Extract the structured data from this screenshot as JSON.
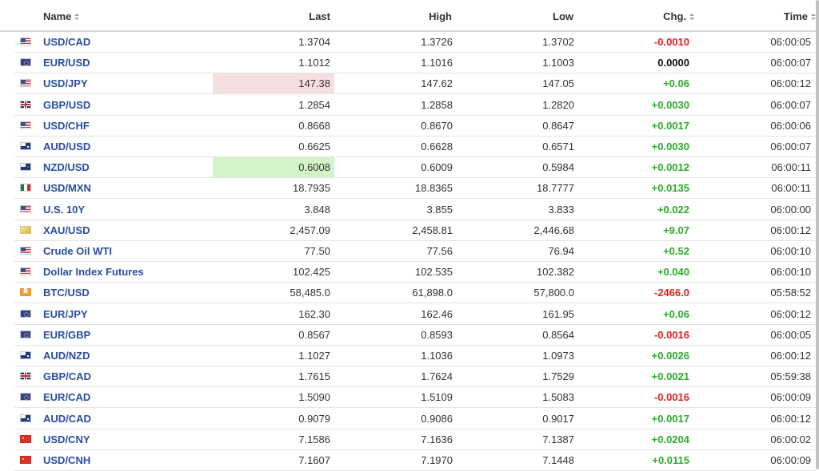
{
  "table": {
    "headers": {
      "name": "Name",
      "last": "Last",
      "high": "High",
      "low": "Low",
      "chg": "Chg.",
      "time": "Time"
    },
    "rows": [
      {
        "flag": "us-flag-icon",
        "name": "USD/CAD",
        "last": "1.3704",
        "high": "1.3726",
        "low": "1.3702",
        "chg": "-0.0010",
        "dir": "neg",
        "time": "06:00:05"
      },
      {
        "flag": "eu-flag-icon",
        "name": "EUR/USD",
        "last": "1.1012",
        "high": "1.1016",
        "low": "1.1003",
        "chg": "0.0000",
        "dir": "zero",
        "time": "06:00:07"
      },
      {
        "flag": "us-flag-icon",
        "name": "USD/JPY",
        "last": "147.38",
        "high": "147.62",
        "low": "147.05",
        "chg": "+0.06",
        "dir": "pos",
        "time": "06:00:12",
        "highlight": "down"
      },
      {
        "flag": "gb-flag-icon",
        "name": "GBP/USD",
        "last": "1.2854",
        "high": "1.2858",
        "low": "1.2820",
        "chg": "+0.0030",
        "dir": "pos",
        "time": "06:00:07"
      },
      {
        "flag": "us-flag-icon",
        "name": "USD/CHF",
        "last": "0.8668",
        "high": "0.8670",
        "low": "0.8647",
        "chg": "+0.0017",
        "dir": "pos",
        "time": "06:00:06"
      },
      {
        "flag": "au-flag-icon",
        "name": "AUD/USD",
        "last": "0.6625",
        "high": "0.6628",
        "low": "0.6571",
        "chg": "+0.0030",
        "dir": "pos",
        "time": "06:00:07"
      },
      {
        "flag": "nz-flag-icon",
        "name": "NZD/USD",
        "last": "0.6008",
        "high": "0.6009",
        "low": "0.5984",
        "chg": "+0.0012",
        "dir": "pos",
        "time": "06:00:11",
        "highlight": "up"
      },
      {
        "flag": "mx-flag-icon",
        "name": "USD/MXN",
        "last": "18.7935",
        "high": "18.8365",
        "low": "18.7777",
        "chg": "+0.0135",
        "dir": "pos",
        "time": "06:00:11"
      },
      {
        "flag": "us-flag-icon",
        "name": "U.S. 10Y",
        "last": "3.848",
        "high": "3.855",
        "low": "3.833",
        "chg": "+0.022",
        "dir": "pos",
        "time": "06:00:00"
      },
      {
        "flag": "gold-icon",
        "name": "XAU/USD",
        "last": "2,457.09",
        "high": "2,458.81",
        "low": "2,446.68",
        "chg": "+9.07",
        "dir": "pos",
        "time": "06:00:12"
      },
      {
        "flag": "us-flag-icon",
        "name": "Crude Oil WTI",
        "last": "77.50",
        "high": "77.56",
        "low": "76.94",
        "chg": "+0.52",
        "dir": "pos",
        "time": "06:00:10"
      },
      {
        "flag": "us-flag-icon",
        "name": "Dollar Index Futures",
        "last": "102.425",
        "high": "102.535",
        "low": "102.382",
        "chg": "+0.040",
        "dir": "pos",
        "time": "06:00:10"
      },
      {
        "flag": "bitcoin-icon",
        "name": "BTC/USD",
        "last": "58,485.0",
        "high": "61,898.0",
        "low": "57,800.0",
        "chg": "-2466.0",
        "dir": "neg",
        "time": "05:58:52"
      },
      {
        "flag": "eu-flag-icon",
        "name": "EUR/JPY",
        "last": "162.30",
        "high": "162.46",
        "low": "161.95",
        "chg": "+0.06",
        "dir": "pos",
        "time": "06:00:12"
      },
      {
        "flag": "eu-flag-icon",
        "name": "EUR/GBP",
        "last": "0.8567",
        "high": "0.8593",
        "low": "0.8564",
        "chg": "-0.0016",
        "dir": "neg",
        "time": "06:00:05"
      },
      {
        "flag": "au-flag-icon",
        "name": "AUD/NZD",
        "last": "1.1027",
        "high": "1.1036",
        "low": "1.0973",
        "chg": "+0.0026",
        "dir": "pos",
        "time": "06:00:12"
      },
      {
        "flag": "gb-flag-icon",
        "name": "GBP/CAD",
        "last": "1.7615",
        "high": "1.7624",
        "low": "1.7529",
        "chg": "+0.0021",
        "dir": "pos",
        "time": "05:59:38"
      },
      {
        "flag": "eu-flag-icon",
        "name": "EUR/CAD",
        "last": "1.5090",
        "high": "1.5109",
        "low": "1.5083",
        "chg": "-0.0016",
        "dir": "neg",
        "time": "06:00:09"
      },
      {
        "flag": "au-flag-icon",
        "name": "AUD/CAD",
        "last": "0.9079",
        "high": "0.9086",
        "low": "0.9017",
        "chg": "+0.0017",
        "dir": "pos",
        "time": "06:00:12"
      },
      {
        "flag": "cn-flag-icon",
        "name": "USD/CNY",
        "last": "7.1586",
        "high": "7.1636",
        "low": "7.1387",
        "chg": "+0.0204",
        "dir": "pos",
        "time": "06:00:02"
      },
      {
        "flag": "cn-flag-icon",
        "name": "USD/CNH",
        "last": "7.1607",
        "high": "7.1970",
        "low": "7.1448",
        "chg": "+0.0115",
        "dir": "pos",
        "time": "06:00:09"
      }
    ]
  },
  "colors": {
    "name_link": "#2a4d9f",
    "positive": "#2daa2d",
    "negative": "#e02020",
    "neutral": "#111111",
    "flash_down": "#f6dfe0",
    "flash_up": "#d3f4c9"
  }
}
